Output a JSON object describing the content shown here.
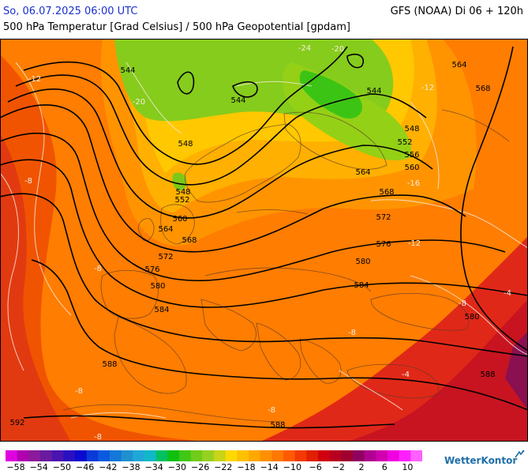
{
  "header": {
    "run_date": "So, 06.07.2025 06:00 UTC",
    "model": "GFS (NOAA) Di 06 + 120h",
    "subtitle": "500 hPa Temperatur [Grad Celsius] / 500 hPa Geopotential [gpdam]"
  },
  "map_data": {
    "region": "Europe / North Atlantic",
    "geopotential_labels": [
      "544",
      "544",
      "544",
      "548",
      "548",
      "548",
      "552",
      "552",
      "556",
      "560",
      "560",
      "564",
      "564",
      "564",
      "568",
      "568",
      "568",
      "572",
      "572",
      "576",
      "576",
      "580",
      "580",
      "580",
      "584",
      "584",
      "588",
      "588",
      "588",
      "592"
    ],
    "temperature_labels": [
      "-12",
      "-20",
      "-24",
      "-20",
      "-12",
      "-16",
      "-8",
      "-8",
      "-12",
      "-8",
      "-8",
      "-8",
      "-4",
      "-4",
      "-8",
      "-8"
    ]
  },
  "legend": {
    "colors": [
      "#e000e0",
      "#b000b0",
      "#8a1a9a",
      "#6a1aa0",
      "#4a14b0",
      "#2a10c0",
      "#0a0ad0",
      "#0a3ad8",
      "#0a5ae0",
      "#1478d8",
      "#1e90d0",
      "#1ea8d8",
      "#10b8c8",
      "#00c060",
      "#10c010",
      "#40c814",
      "#70cc18",
      "#98d020",
      "#c8d418",
      "#ffd800",
      "#ffc000",
      "#ffa800",
      "#ff9000",
      "#ff7800",
      "#ff5a00",
      "#f23a00",
      "#e02000",
      "#d00010",
      "#b80020",
      "#a00030",
      "#900060",
      "#b00090",
      "#d000b0",
      "#f000e0",
      "#ff20ff",
      "#ff60ff"
    ],
    "ticks": [
      "−58",
      "−54",
      "−50",
      "−46",
      "−42",
      "−38",
      "−34",
      "−30",
      "−26",
      "−22",
      "−18",
      "−14",
      "−10",
      "−6",
      "−2",
      "2",
      "6",
      "10"
    ]
  },
  "brand": "WetterKontor"
}
